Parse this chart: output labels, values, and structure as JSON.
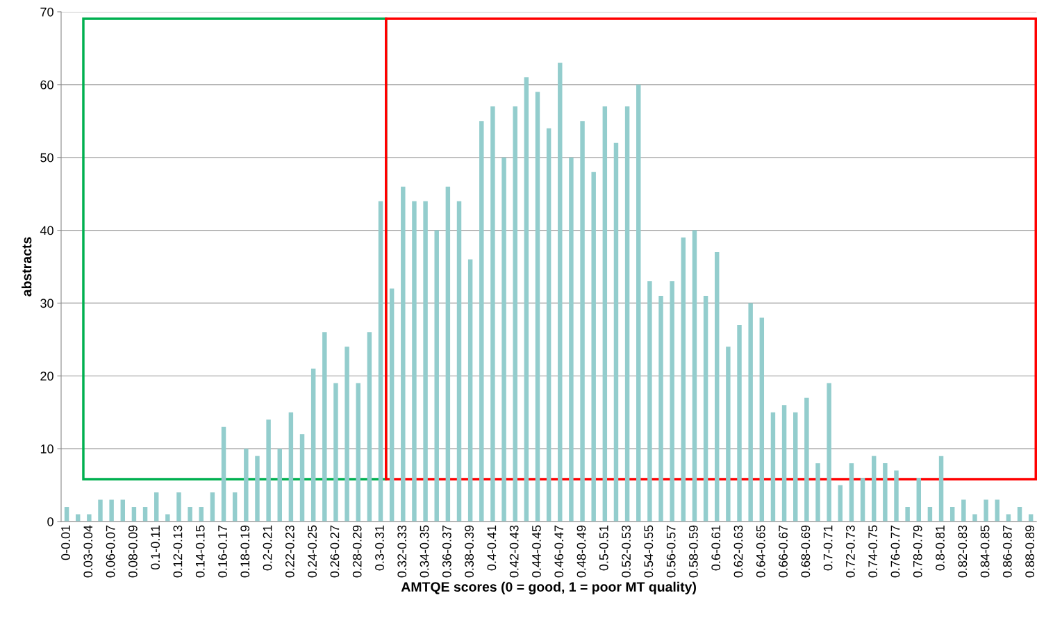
{
  "chart_data": {
    "type": "bar",
    "xlabel": "AMTQE scores (0 = good, 1 = poor MT quality)",
    "ylabel": "abstracts",
    "categories": [
      "0-0.01",
      null,
      "0.03-0.04",
      null,
      "0.06-0.07",
      null,
      "0.08-0.09",
      null,
      "0.1-0.11",
      null,
      "0.12-0.13",
      null,
      "0.14-0.15",
      null,
      "0.16-0.17",
      null,
      "0.18-0.19",
      null,
      "0.2-0.21",
      null,
      "0.22-0.23",
      null,
      "0.24-0.25",
      null,
      "0.26-0.27",
      null,
      "0.28-0.29",
      null,
      "0.3-0.31",
      null,
      "0.32-0.33",
      null,
      "0.34-0.35",
      null,
      "0.36-0.37",
      null,
      "0.38-0.39",
      null,
      "0.4-0.41",
      null,
      "0.42-0.43",
      null,
      "0.44-0.45",
      null,
      "0.46-0.47",
      null,
      "0.48-0.49",
      null,
      "0.5-0.51",
      null,
      "0.52-0.53",
      null,
      "0.54-0.55",
      null,
      "0.56-0.57",
      null,
      "0.58-0.59",
      null,
      "0.6-0.61",
      null,
      "0.62-0.63",
      null,
      "0.64-0.65",
      null,
      "0.66-0.67",
      null,
      "0.68-0.69",
      null,
      "0.7-0.71",
      null,
      "0.72-0.73",
      null,
      "0.74-0.75",
      null,
      "0.76-0.77",
      null,
      "0.78-0.79",
      null,
      "0.8-0.81",
      null,
      "0.82-0.83",
      null,
      "0.84-0.85",
      null,
      "0.86-0.87",
      null,
      "0.88-0.89"
    ],
    "values": [
      2,
      1,
      1,
      3,
      3,
      3,
      2,
      2,
      4,
      1,
      4,
      2,
      2,
      4,
      13,
      4,
      10,
      9,
      14,
      10,
      15,
      12,
      21,
      26,
      19,
      24,
      19,
      26,
      44,
      32,
      46,
      44,
      44,
      40,
      46,
      44,
      36,
      55,
      57,
      50,
      57,
      61,
      59,
      54,
      63,
      50,
      55,
      48,
      57,
      52,
      57,
      60,
      33,
      31,
      33,
      39,
      40,
      31,
      37,
      24,
      27,
      30,
      28,
      15,
      16,
      15,
      17,
      8,
      19,
      5,
      8,
      6,
      9,
      8,
      7,
      2,
      6,
      2,
      9,
      2,
      3,
      1,
      3,
      3,
      1,
      2,
      1
    ],
    "color": "#93cdcd",
    "ylim": [
      0,
      70
    ],
    "yticks": [
      0,
      10,
      20,
      30,
      40,
      50,
      60,
      70
    ],
    "grid": "y"
  }
}
